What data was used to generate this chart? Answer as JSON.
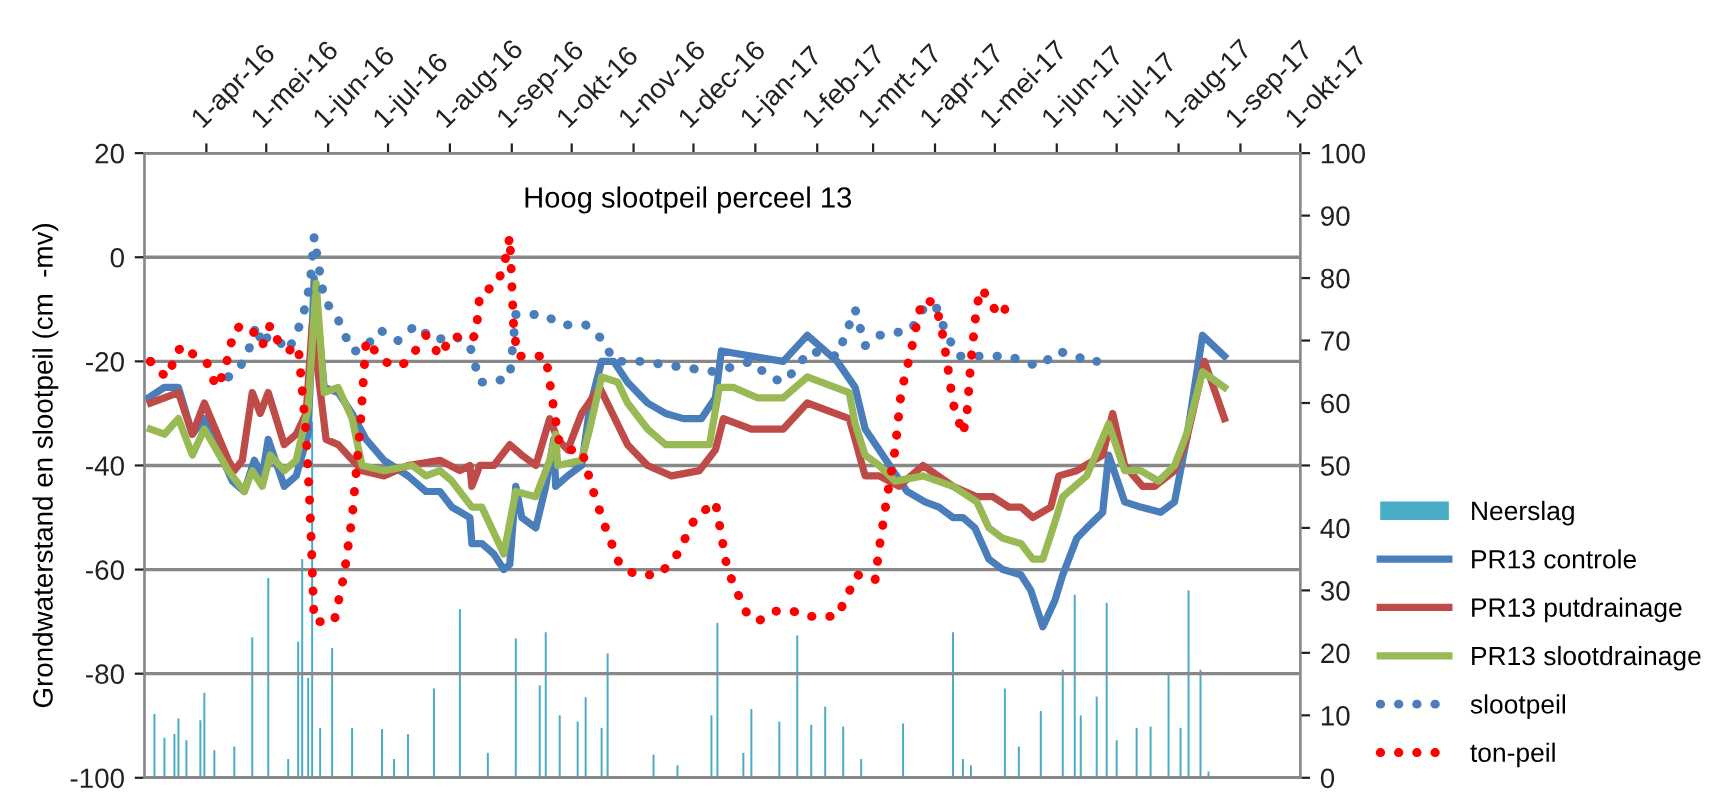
{
  "chart_data": {
    "type": "line",
    "title": "Hoog slootpeil perceel 13",
    "ylabel": "Grondwaterstand en slootpeil (cm  -mv)",
    "xlim": [
      "2016-03-01",
      "2017-10-01"
    ],
    "xticks": [
      {
        "value": "2016-04-01",
        "label": "1-apr-16"
      },
      {
        "value": "2016-05-01",
        "label": "1-mei-16"
      },
      {
        "value": "2016-06-01",
        "label": "1-jun-16"
      },
      {
        "value": "2016-07-01",
        "label": "1-jul-16"
      },
      {
        "value": "2016-08-01",
        "label": "1-aug-16"
      },
      {
        "value": "2016-09-01",
        "label": "1-sep-16"
      },
      {
        "value": "2016-10-01",
        "label": "1-okt-16"
      },
      {
        "value": "2016-11-01",
        "label": "1-nov-16"
      },
      {
        "value": "2016-12-01",
        "label": "1-dec-16"
      },
      {
        "value": "2017-01-01",
        "label": "1-jan-17"
      },
      {
        "value": "2017-02-01",
        "label": "1-feb-17"
      },
      {
        "value": "2017-03-01",
        "label": "1-mrt-17"
      },
      {
        "value": "2017-04-01",
        "label": "1-apr-17"
      },
      {
        "value": "2017-05-01",
        "label": "1-mei-17"
      },
      {
        "value": "2017-06-01",
        "label": "1-jun-17"
      },
      {
        "value": "2017-07-01",
        "label": "1-jul-17"
      },
      {
        "value": "2017-08-01",
        "label": "1-aug-17"
      },
      {
        "value": "2017-09-01",
        "label": "1-sep-17"
      },
      {
        "value": "2017-10-01",
        "label": "1-okt-17"
      }
    ],
    "ylim": [
      -100,
      20
    ],
    "yticks": [
      -100,
      -80,
      -60,
      -40,
      -20,
      0,
      20
    ],
    "y2lim": [
      0,
      100
    ],
    "y2ticks": [
      0,
      10,
      20,
      30,
      40,
      50,
      60,
      70,
      80,
      90,
      100
    ],
    "grid": "y",
    "legend": "right",
    "series": [
      {
        "name": "Neerslag",
        "type": "bar",
        "axis": "y2",
        "color": "#4bacc6",
        "x": [
          "2016-03-06",
          "2016-03-11",
          "2016-03-16",
          "2016-03-18",
          "2016-03-22",
          "2016-03-29",
          "2016-03-31",
          "2016-04-05",
          "2016-04-15",
          "2016-04-24",
          "2016-05-02",
          "2016-05-12",
          "2016-05-17",
          "2016-05-19",
          "2016-05-22",
          "2016-05-24",
          "2016-05-28",
          "2016-06-03",
          "2016-06-13",
          "2016-06-28",
          "2016-07-04",
          "2016-07-11",
          "2016-07-24",
          "2016-08-06",
          "2016-08-20",
          "2016-09-03",
          "2016-09-15",
          "2016-09-18",
          "2016-09-25",
          "2016-10-04",
          "2016-10-08",
          "2016-10-16",
          "2016-10-19",
          "2016-11-11",
          "2016-11-23",
          "2016-12-10",
          "2016-12-13",
          "2016-12-26",
          "2016-12-30",
          "2017-01-13",
          "2017-01-22",
          "2017-01-29",
          "2017-02-05",
          "2017-02-14",
          "2017-02-23",
          "2017-03-16",
          "2017-04-10",
          "2017-04-15",
          "2017-04-19",
          "2017-05-06",
          "2017-05-13",
          "2017-05-24",
          "2017-06-04",
          "2017-06-10",
          "2017-06-13",
          "2017-06-21",
          "2017-06-26",
          "2017-07-01",
          "2017-07-11",
          "2017-07-18",
          "2017-07-27",
          "2017-08-02",
          "2017-08-06",
          "2017-08-12",
          "2017-08-16"
        ],
        "values": [
          10.2,
          6.4,
          7,
          9.5,
          6,
          9.2,
          13.6,
          4.4,
          5,
          22.5,
          32,
          3,
          21.8,
          35,
          16,
          57,
          8,
          20.8,
          8,
          7.8,
          3,
          7,
          14.3,
          27,
          4,
          22.3,
          14.8,
          23.3,
          10,
          9,
          12.9,
          8,
          19.9,
          3.7,
          2,
          10,
          24.8,
          4,
          11,
          9,
          22.8,
          8.5,
          11.4,
          8.2,
          3,
          8.7,
          23.3,
          3,
          2,
          14.3,
          5,
          10.7,
          17.3,
          29.3,
          10,
          13,
          28,
          6,
          8,
          8.2,
          16.6,
          8,
          30,
          17.3,
          1
        ]
      },
      {
        "name": "PR13 controle",
        "color": "#4a7ebb",
        "line_style": "solid",
        "x": [
          "2016-03-03",
          "2016-03-11",
          "2016-03-18",
          "2016-03-25",
          "2016-03-31",
          "2016-04-14",
          "2016-04-20",
          "2016-04-25",
          "2016-04-29",
          "2016-05-02",
          "2016-05-10",
          "2016-05-16",
          "2016-05-22",
          "2016-05-25",
          "2016-05-30",
          "2016-06-06",
          "2016-06-13",
          "2016-06-20",
          "2016-06-29",
          "2016-07-11",
          "2016-07-20",
          "2016-07-27",
          "2016-08-02",
          "2016-08-11",
          "2016-08-12",
          "2016-08-17",
          "2016-08-23",
          "2016-08-28",
          "2016-08-31",
          "2016-09-03",
          "2016-09-06",
          "2016-09-13",
          "2016-09-18",
          "2016-09-22",
          "2016-09-23",
          "2016-09-29",
          "2016-10-06",
          "2016-10-10",
          "2016-10-16",
          "2016-10-22",
          "2016-10-29",
          "2016-11-08",
          "2016-11-17",
          "2016-11-26",
          "2016-12-05",
          "2016-12-12",
          "2016-12-15",
          "2016-12-30",
          "2017-01-15",
          "2017-01-27",
          "2017-02-11",
          "2017-02-20",
          "2017-02-25",
          "2017-03-04",
          "2017-03-18",
          "2017-03-27",
          "2017-04-03",
          "2017-04-10",
          "2017-04-15",
          "2017-04-21",
          "2017-04-28",
          "2017-05-05",
          "2017-05-14",
          "2017-05-19",
          "2017-05-25",
          "2017-05-31",
          "2017-06-04",
          "2017-06-11",
          "2017-06-16",
          "2017-06-24",
          "2017-06-27",
          "2017-07-05",
          "2017-07-13",
          "2017-07-23",
          "2017-07-30",
          "2017-08-05",
          "2017-08-13",
          "2017-08-24"
        ],
        "values": [
          -27,
          -25,
          -25,
          -34,
          -31,
          -43,
          -45,
          -39,
          -42,
          -35,
          -44,
          -42,
          -34,
          -4,
          -25,
          -26,
          -30,
          -35,
          -39,
          -42,
          -45,
          -45,
          -48,
          -50,
          -55,
          -55,
          -57,
          -60,
          -59,
          -44,
          -50,
          -52,
          -44,
          -35,
          -44,
          -42,
          -40,
          -29,
          -20,
          -20,
          -24,
          -28,
          -30,
          -31,
          -31,
          -27,
          -18,
          -19,
          -20,
          -15,
          -20,
          -25,
          -33,
          -37,
          -45,
          -47,
          -48,
          -50,
          -50,
          -52,
          -58,
          -60,
          -61,
          -64,
          -71,
          -66,
          -61,
          -54,
          -52,
          -49,
          -38,
          -47,
          -48,
          -49,
          -47,
          -35,
          -15,
          -19
        ]
      },
      {
        "name": "PR13 putdrainage",
        "color": "#be4b48",
        "line_style": "solid",
        "x": [
          "2016-03-04",
          "2016-03-18",
          "2016-03-25",
          "2016-03-31",
          "2016-04-12",
          "2016-04-15",
          "2016-04-19",
          "2016-04-24",
          "2016-04-28",
          "2016-05-02",
          "2016-05-10",
          "2016-05-16",
          "2016-05-21",
          "2016-05-24",
          "2016-05-31",
          "2016-06-06",
          "2016-06-18",
          "2016-06-29",
          "2016-07-11",
          "2016-07-27",
          "2016-08-06",
          "2016-08-11",
          "2016-08-12",
          "2016-08-16",
          "2016-08-23",
          "2016-08-31",
          "2016-09-06",
          "2016-09-13",
          "2016-09-20",
          "2016-09-24",
          "2016-09-29",
          "2016-10-06",
          "2016-10-15",
          "2016-10-29",
          "2016-11-08",
          "2016-11-20",
          "2016-12-04",
          "2016-12-12",
          "2016-12-16",
          "2016-12-30",
          "2017-01-15",
          "2017-01-27",
          "2017-02-17",
          "2017-02-20",
          "2017-02-25",
          "2017-03-04",
          "2017-03-14",
          "2017-03-26",
          "2017-04-10",
          "2017-04-22",
          "2017-04-30",
          "2017-05-08",
          "2017-05-14",
          "2017-05-20",
          "2017-05-29",
          "2017-06-02",
          "2017-06-11",
          "2017-06-24",
          "2017-06-29",
          "2017-07-05",
          "2017-07-14",
          "2017-07-20",
          "2017-07-30",
          "2017-08-05",
          "2017-08-14",
          "2017-08-24"
        ],
        "values": [
          -28,
          -26,
          -34,
          -28,
          -39,
          -41,
          -39,
          -26,
          -30,
          -26,
          -36,
          -34,
          -30,
          -13,
          -35,
          -36,
          -41,
          -42,
          -40,
          -39,
          -41,
          -40,
          -44,
          -40,
          -40,
          -36,
          -38,
          -40,
          -31,
          -35,
          -37,
          -30,
          -25,
          -36,
          -40,
          -42,
          -41,
          -37,
          -31,
          -33,
          -33,
          -28,
          -31,
          -35,
          -42,
          -42,
          -44,
          -40,
          -44,
          -46,
          -46,
          -48,
          -48,
          -50,
          -48,
          -42,
          -41,
          -38,
          -30,
          -40,
          -44,
          -44,
          -41,
          -35,
          -20,
          -31
        ]
      },
      {
        "name": "PR13 slootdrainage",
        "color": "#98b954",
        "line_style": "solid",
        "x": [
          "2016-03-04",
          "2016-03-11",
          "2016-03-18",
          "2016-03-25",
          "2016-03-31",
          "2016-04-12",
          "2016-04-20",
          "2016-04-24",
          "2016-04-29",
          "2016-05-03",
          "2016-05-10",
          "2016-05-16",
          "2016-05-22",
          "2016-05-26",
          "2016-05-30",
          "2016-06-06",
          "2016-06-13",
          "2016-06-18",
          "2016-06-29",
          "2016-07-13",
          "2016-07-20",
          "2016-07-27",
          "2016-08-02",
          "2016-08-12",
          "2016-08-17",
          "2016-08-28",
          "2016-09-03",
          "2016-09-13",
          "2016-09-20",
          "2016-09-23",
          "2016-09-24",
          "2016-10-06",
          "2016-10-10",
          "2016-10-16",
          "2016-10-24",
          "2016-10-29",
          "2016-11-08",
          "2016-11-17",
          "2016-11-29",
          "2016-12-09",
          "2016-12-14",
          "2016-12-21",
          "2017-01-02",
          "2017-01-15",
          "2017-01-27",
          "2017-02-17",
          "2017-02-20",
          "2017-02-25",
          "2017-03-04",
          "2017-03-12",
          "2017-03-26",
          "2017-04-10",
          "2017-04-22",
          "2017-04-28",
          "2017-05-05",
          "2017-05-14",
          "2017-05-20",
          "2017-05-25",
          "2017-05-31",
          "2017-06-04",
          "2017-06-16",
          "2017-06-27",
          "2017-07-05",
          "2017-07-13",
          "2017-07-22",
          "2017-07-30",
          "2017-08-05",
          "2017-08-13",
          "2017-08-24"
        ],
        "values": [
          -33,
          -34,
          -31,
          -38,
          -33,
          -41,
          -45,
          -41,
          -44,
          -38,
          -41,
          -39,
          -29,
          -5,
          -26,
          -25,
          -31,
          -40,
          -41,
          -40,
          -42,
          -41,
          -43,
          -48,
          -48,
          -57,
          -45,
          -46,
          -39,
          -34,
          -40,
          -39,
          -33,
          -23,
          -24,
          -28,
          -33,
          -36,
          -36,
          -36,
          -25,
          -25,
          -27,
          -27,
          -23,
          -26,
          -32,
          -38,
          -40,
          -43,
          -42,
          -44,
          -47,
          -52,
          -54,
          -55,
          -58,
          -58,
          -51,
          -46,
          -42,
          -32,
          -41,
          -41,
          -43,
          -40,
          -34,
          -22,
          -25
        ]
      },
      {
        "name": "slootpeil",
        "color": "#4a7ebb",
        "line_style": "dotted",
        "x": [
          "2016-04-12",
          "2016-04-18",
          "2016-04-23",
          "2016-04-26",
          "2016-04-29",
          "2016-05-02",
          "2016-05-07",
          "2016-05-12",
          "2016-05-19",
          "2016-05-23",
          "2016-05-25",
          "2016-05-27",
          "2016-05-30",
          "2016-06-06",
          "2016-06-13",
          "2016-06-18",
          "2016-06-27",
          "2016-07-06",
          "2016-07-15",
          "2016-07-24",
          "2016-08-03",
          "2016-08-11",
          "2016-08-16",
          "2016-08-23",
          "2016-08-31",
          "2016-09-03",
          "2016-09-17",
          "2016-09-26",
          "2016-10-08",
          "2016-10-17",
          "2016-10-22",
          "2016-11-05",
          "2016-11-23",
          "2016-12-12",
          "2016-12-30",
          "2017-01-08",
          "2017-01-15",
          "2017-01-20",
          "2017-01-28",
          "2017-02-11",
          "2017-02-17",
          "2017-02-20",
          "2017-02-25",
          "2017-03-04",
          "2017-03-20",
          "2017-03-26",
          "2017-04-01",
          "2017-04-07",
          "2017-04-13",
          "2017-04-26",
          "2017-05-08",
          "2017-05-23",
          "2017-06-02",
          "2017-06-09",
          "2017-06-21"
        ],
        "values": [
          -23,
          -21,
          -17,
          -13,
          -17,
          -15,
          -16,
          -18,
          -12,
          -5,
          4,
          -1,
          -8,
          -12,
          -18,
          -18,
          -14,
          -16,
          -13,
          -16,
          -15,
          -17,
          -24,
          -24,
          -23,
          -11,
          -11,
          -13,
          -13,
          -16,
          -20,
          -20,
          -21,
          -22,
          -20,
          -23,
          -24,
          -22,
          -18,
          -19,
          -13,
          -10,
          -17,
          -15,
          -14,
          -10,
          -9,
          -15,
          -19,
          -19,
          -19,
          -21,
          -18,
          -19,
          -20
        ]
      },
      {
        "name": "ton-peil",
        "color": "#ff0000",
        "line_style": "dotted",
        "x": [
          "2016-03-04",
          "2016-03-08",
          "2016-03-13",
          "2016-03-17",
          "2016-03-22",
          "2016-03-26",
          "2016-04-01",
          "2016-04-06",
          "2016-04-10",
          "2016-04-15",
          "2016-04-19",
          "2016-04-24",
          "2016-04-29",
          "2016-05-03",
          "2016-05-08",
          "2016-05-12",
          "2016-05-17",
          "2016-05-21",
          "2016-05-23",
          "2016-05-25",
          "2016-06-04",
          "2016-06-09",
          "2016-06-13",
          "2016-06-17",
          "2016-06-20",
          "2016-06-29",
          "2016-07-06",
          "2016-07-11",
          "2016-07-20",
          "2016-07-27",
          "2016-08-02",
          "2016-08-10",
          "2016-08-14",
          "2016-08-16",
          "2016-08-21",
          "2016-08-25",
          "2016-08-29",
          "2016-08-31",
          "2016-09-02",
          "2016-09-04",
          "2016-09-11",
          "2016-09-18",
          "2016-09-22",
          "2016-09-25",
          "2016-09-29",
          "2016-10-06",
          "2016-10-11",
          "2016-10-17",
          "2016-10-25",
          "2016-11-02",
          "2016-11-14",
          "2016-11-23",
          "2016-12-02",
          "2016-12-12",
          "2016-12-18",
          "2016-12-27",
          "2017-01-02",
          "2017-01-11",
          "2017-01-20",
          "2017-01-27",
          "2017-02-11",
          "2017-02-16",
          "2017-02-21",
          "2017-03-02",
          "2017-03-04",
          "2017-03-08",
          "2017-03-12",
          "2017-03-15",
          "2017-03-20",
          "2017-03-25",
          "2017-03-27",
          "2017-04-01",
          "2017-04-04",
          "2017-04-07",
          "2017-04-10",
          "2017-04-15",
          "2017-04-17",
          "2017-04-19",
          "2017-04-22",
          "2017-04-25",
          "2017-04-27",
          "2017-05-01",
          "2017-05-06"
        ],
        "values": [
          -20,
          -22,
          -23,
          -18,
          -17,
          -19,
          -20,
          -25,
          -22,
          -14,
          -13,
          -14,
          -17,
          -13,
          -17,
          -18,
          -17,
          -34,
          -49,
          -70,
          -70,
          -61,
          -50,
          -33,
          -16,
          -20,
          -21,
          -20,
          -15,
          -19,
          -15,
          -16,
          -15,
          -7,
          -6,
          -5,
          0,
          4,
          -14,
          -19,
          -19,
          -19,
          -29,
          -36,
          -37,
          -37,
          -44,
          -51,
          -59,
          -61,
          -61,
          -57,
          -50,
          -47,
          -60,
          -68,
          -70,
          -68,
          -68,
          -69,
          -69,
          -65,
          -61,
          -62,
          -56,
          -46,
          -37,
          -26,
          -18,
          -9,
          -8,
          -9,
          -13,
          -20,
          -28,
          -34,
          -30,
          -20,
          -9,
          -6,
          -8,
          -10,
          -10
        ]
      }
    ]
  }
}
